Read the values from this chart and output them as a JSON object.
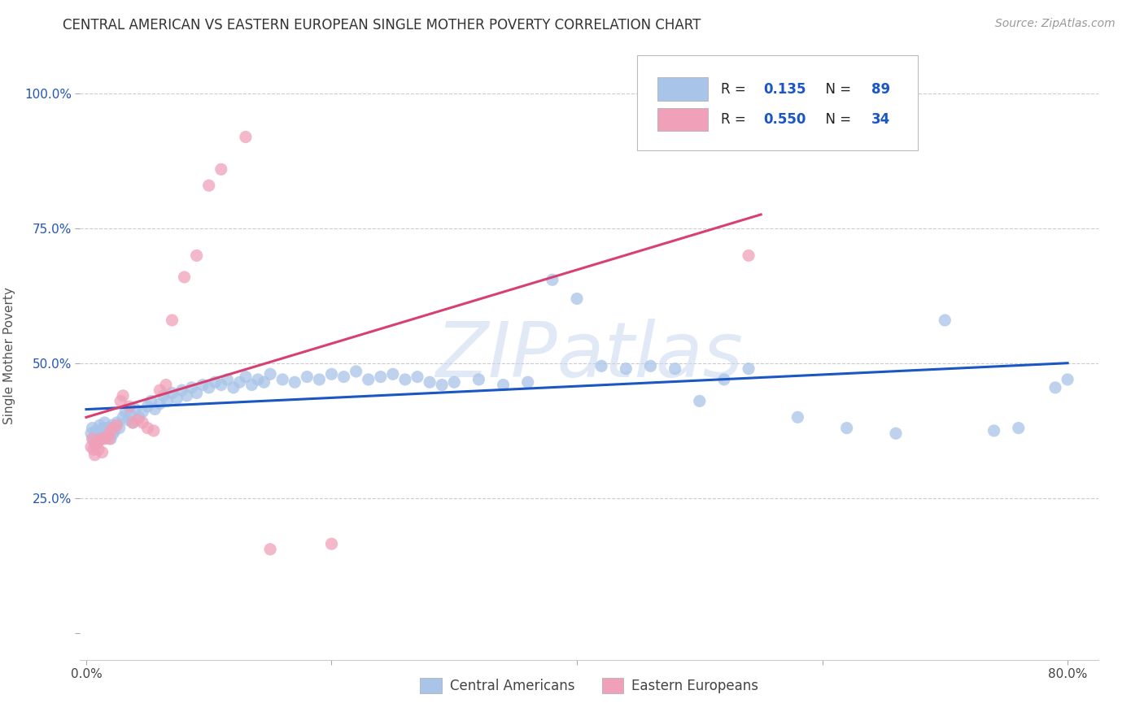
{
  "title": "CENTRAL AMERICAN VS EASTERN EUROPEAN SINGLE MOTHER POVERTY CORRELATION CHART",
  "source": "Source: ZipAtlas.com",
  "ylabel": "Single Mother Poverty",
  "blue_color": "#A8C4E8",
  "pink_color": "#F0A0B8",
  "blue_line_color": "#1A56C4",
  "pink_line_color": "#D84070",
  "legend_R_blue": "0.135",
  "legend_N_blue": "89",
  "legend_R_pink": "0.550",
  "legend_N_pink": "34",
  "watermark": "ZIPatlas",
  "blue_scatter_x": [
    0.004,
    0.005,
    0.006,
    0.007,
    0.008,
    0.009,
    0.01,
    0.011,
    0.012,
    0.013,
    0.014,
    0.015,
    0.016,
    0.017,
    0.018,
    0.019,
    0.02,
    0.021,
    0.022,
    0.023,
    0.025,
    0.027,
    0.03,
    0.032,
    0.034,
    0.036,
    0.038,
    0.04,
    0.043,
    0.046,
    0.05,
    0.053,
    0.056,
    0.06,
    0.063,
    0.066,
    0.07,
    0.074,
    0.078,
    0.082,
    0.086,
    0.09,
    0.095,
    0.1,
    0.105,
    0.11,
    0.115,
    0.12,
    0.125,
    0.13,
    0.135,
    0.14,
    0.145,
    0.15,
    0.16,
    0.17,
    0.18,
    0.19,
    0.2,
    0.21,
    0.22,
    0.23,
    0.24,
    0.25,
    0.26,
    0.27,
    0.28,
    0.29,
    0.3,
    0.32,
    0.34,
    0.36,
    0.38,
    0.4,
    0.42,
    0.44,
    0.46,
    0.48,
    0.5,
    0.52,
    0.54,
    0.58,
    0.62,
    0.66,
    0.7,
    0.74,
    0.76,
    0.79,
    0.8
  ],
  "blue_scatter_y": [
    0.37,
    0.38,
    0.36,
    0.35,
    0.375,
    0.365,
    0.355,
    0.385,
    0.37,
    0.36,
    0.38,
    0.39,
    0.37,
    0.38,
    0.365,
    0.375,
    0.36,
    0.385,
    0.37,
    0.375,
    0.39,
    0.38,
    0.4,
    0.41,
    0.395,
    0.405,
    0.39,
    0.415,
    0.4,
    0.41,
    0.42,
    0.43,
    0.415,
    0.425,
    0.44,
    0.43,
    0.445,
    0.435,
    0.45,
    0.44,
    0.455,
    0.445,
    0.46,
    0.455,
    0.465,
    0.46,
    0.47,
    0.455,
    0.465,
    0.475,
    0.46,
    0.47,
    0.465,
    0.48,
    0.47,
    0.465,
    0.475,
    0.47,
    0.48,
    0.475,
    0.485,
    0.47,
    0.475,
    0.48,
    0.47,
    0.475,
    0.465,
    0.46,
    0.465,
    0.47,
    0.46,
    0.465,
    0.655,
    0.62,
    0.495,
    0.49,
    0.495,
    0.49,
    0.43,
    0.47,
    0.49,
    0.4,
    0.38,
    0.37,
    0.58,
    0.375,
    0.38,
    0.455,
    0.47
  ],
  "pink_scatter_x": [
    0.004,
    0.005,
    0.006,
    0.007,
    0.008,
    0.009,
    0.01,
    0.012,
    0.013,
    0.015,
    0.017,
    0.019,
    0.02,
    0.022,
    0.025,
    0.028,
    0.03,
    0.035,
    0.038,
    0.042,
    0.046,
    0.05,
    0.055,
    0.06,
    0.065,
    0.07,
    0.08,
    0.09,
    0.1,
    0.11,
    0.13,
    0.15,
    0.2,
    0.54
  ],
  "pink_scatter_y": [
    0.345,
    0.36,
    0.34,
    0.33,
    0.35,
    0.355,
    0.34,
    0.36,
    0.335,
    0.36,
    0.365,
    0.36,
    0.375,
    0.38,
    0.385,
    0.43,
    0.44,
    0.42,
    0.39,
    0.395,
    0.39,
    0.38,
    0.375,
    0.45,
    0.46,
    0.58,
    0.66,
    0.7,
    0.83,
    0.86,
    0.92,
    0.155,
    0.165,
    0.7
  ]
}
